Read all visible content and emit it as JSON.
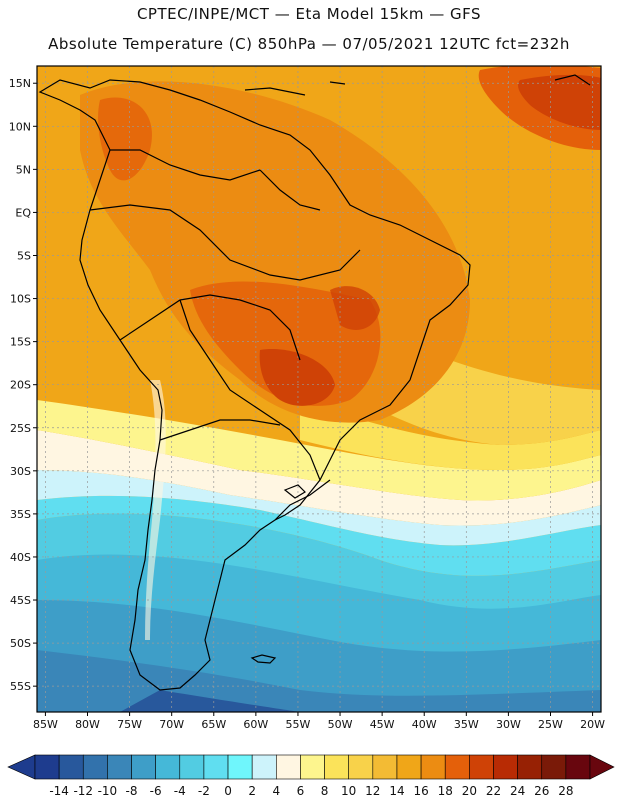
{
  "header": {
    "line1": "CPTEC/INPE/MCT —  Eta Model 15km — GFS",
    "line2": "Absolute Temperature (C) 850hPa — 07/05/2021 12UTC fct=232h"
  },
  "map": {
    "lat_labels": [
      "15N",
      "10N",
      "5N",
      "EQ",
      "5S",
      "10S",
      "15S",
      "20S",
      "25S",
      "30S",
      "35S",
      "40S",
      "45S",
      "50S",
      "55S"
    ],
    "lat_values": [
      15,
      10,
      5,
      0,
      -5,
      -10,
      -15,
      -20,
      -25,
      -30,
      -35,
      -40,
      -45,
      -50,
      -55
    ],
    "lon_labels": [
      "85W",
      "80W",
      "75W",
      "70W",
      "65W",
      "60W",
      "55W",
      "50W",
      "45W",
      "40W",
      "35W",
      "30W",
      "25W",
      "20W"
    ],
    "lon_values": [
      -85,
      -80,
      -75,
      -70,
      -65,
      -60,
      -55,
      -50,
      -45,
      -40,
      -35,
      -30,
      -25,
      -20
    ],
    "lat_range": [
      -58,
      17
    ],
    "lon_range": [
      -86,
      -19
    ]
  },
  "colorbar": {
    "labels": [
      "-14",
      "-12",
      "-10",
      "-8",
      "-6",
      "-4",
      "-2",
      "0",
      "2",
      "4",
      "6",
      "8",
      "10",
      "12",
      "14",
      "16",
      "18",
      "20",
      "22",
      "24",
      "26",
      "28"
    ],
    "colors": [
      "#1e3c8e",
      "#28589c",
      "#3272ac",
      "#3a86b8",
      "#3e9ec8",
      "#45b8d8",
      "#52cce2",
      "#60def0",
      "#6ff6fc",
      "#cdf3fb",
      "#fff6e2",
      "#fdf58e",
      "#fbe35a",
      "#f8d24a",
      "#f3bb34",
      "#f0a618",
      "#ec8c12",
      "#e4600a",
      "#cf4206",
      "#b82b04",
      "#972104",
      "#7a1a08",
      "#68060e"
    ],
    "left_end_color": "#1e3c8e",
    "right_end_color": "#68060e"
  }
}
